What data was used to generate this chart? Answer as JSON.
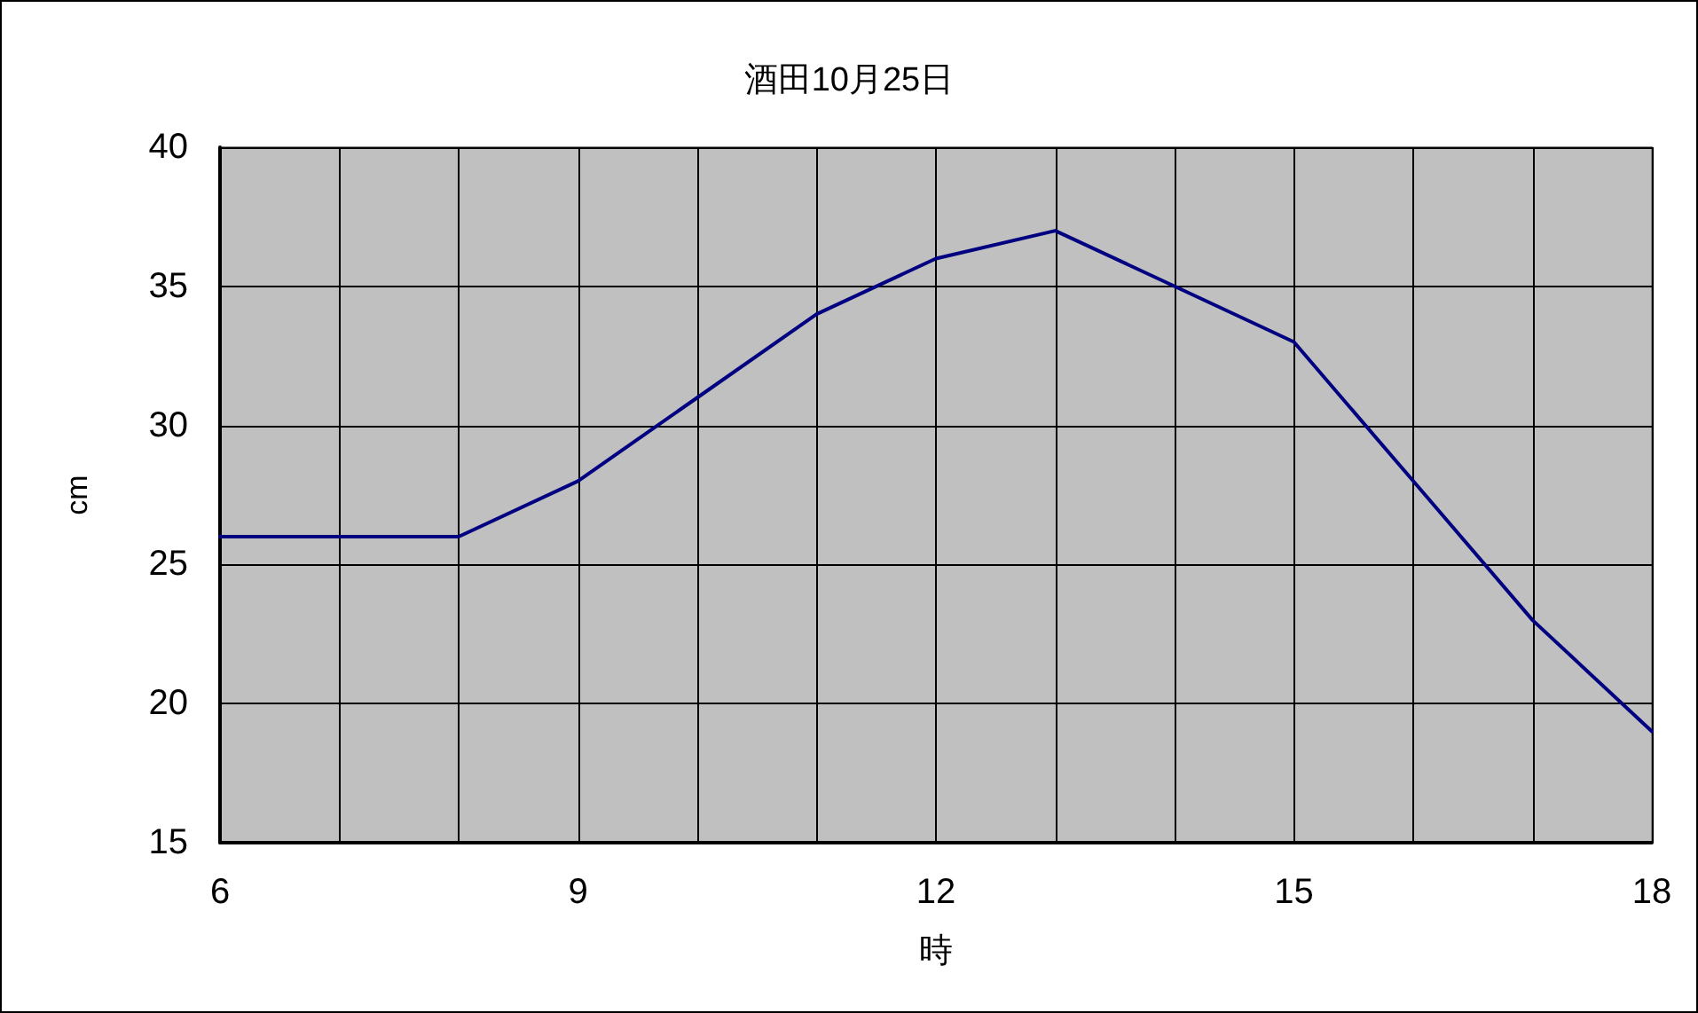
{
  "chart_data": {
    "type": "line",
    "title": "酒田10月25日",
    "xlabel": "時",
    "ylabel": "cm",
    "x": [
      6,
      7,
      8,
      9,
      10,
      11,
      12,
      13,
      14,
      15,
      16,
      17,
      18
    ],
    "series": [
      {
        "color": "#000080",
        "values": [
          26,
          26,
          26,
          28,
          31,
          34,
          36,
          37,
          35,
          33,
          28,
          23,
          19
        ]
      }
    ],
    "xlim": [
      6,
      18
    ],
    "xticks": [
      6,
      {
        "value": 7,
        "label": null
      },
      {
        "value": 8,
        "label": null
      },
      9,
      {
        "value": 10,
        "label": null
      },
      {
        "value": 11,
        "label": null
      },
      12,
      {
        "value": 13,
        "label": null
      },
      {
        "value": 14,
        "label": null
      },
      15,
      {
        "value": 16,
        "label": null
      },
      {
        "value": 17,
        "label": null
      },
      18
    ],
    "ylim": [
      15,
      40
    ],
    "yticks": [
      15,
      20,
      25,
      30,
      35,
      40
    ],
    "grid": true,
    "marker": "none",
    "line_style": "solid"
  }
}
